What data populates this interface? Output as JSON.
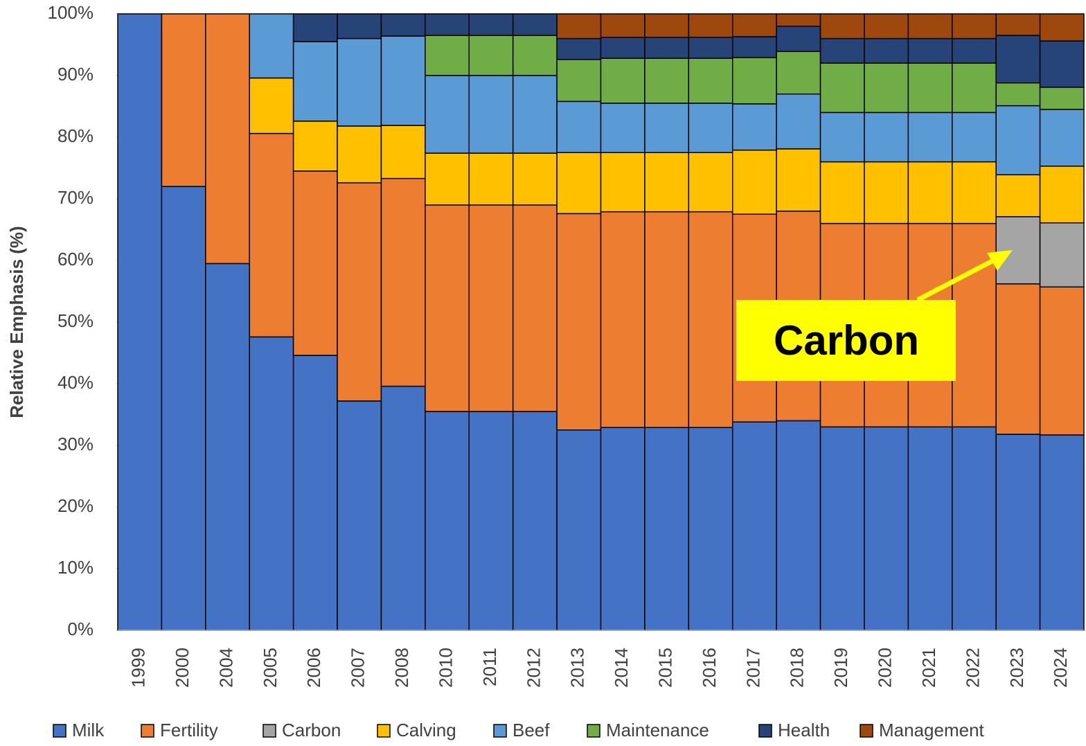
{
  "chart_data": {
    "type": "stacked_bar",
    "y_label": "Relative Emphasis (%)",
    "categories": [
      "1999",
      "2000",
      "2004",
      "2005",
      "2006",
      "2007",
      "2008",
      "2010",
      "2011",
      "2012",
      "2013",
      "2014",
      "2015",
      "2016",
      "2017",
      "2018",
      "2019",
      "2020",
      "2021",
      "2022",
      "2023",
      "2024"
    ],
    "ylim": [
      0,
      100
    ],
    "yticks": [
      {
        "value": 0,
        "label": "0%"
      },
      {
        "value": 10,
        "label": "10%"
      },
      {
        "value": 20,
        "label": "20%"
      },
      {
        "value": 30,
        "label": "30%"
      },
      {
        "value": 40,
        "label": "40%"
      },
      {
        "value": 50,
        "label": "50%"
      },
      {
        "value": 60,
        "label": "60%"
      },
      {
        "value": 70,
        "label": "70%"
      },
      {
        "value": 80,
        "label": "80%"
      },
      {
        "value": 90,
        "label": "90%"
      },
      {
        "value": 100,
        "label": "100%"
      }
    ],
    "legend": "bottom",
    "series": [
      {
        "name": "Milk",
        "color": "#4472c4",
        "values": [
          100,
          72,
          59.5,
          47.6,
          44.6,
          37.2,
          39.6,
          35.5,
          35.5,
          35.5,
          32.5,
          32.9,
          32.9,
          32.9,
          33.8,
          34,
          33,
          33,
          33,
          33,
          31.8,
          31.7
        ]
      },
      {
        "name": "Fertility",
        "color": "#ed7d31",
        "values": [
          null,
          28,
          40.5,
          33,
          29.9,
          35.4,
          33.7,
          33.5,
          33.5,
          33.5,
          35.1,
          35,
          35,
          35,
          33.7,
          34,
          33,
          33,
          33,
          33,
          24.4,
          24
        ]
      },
      {
        "name": "Carbon",
        "color": "#a5a5a5",
        "values": [
          null,
          null,
          null,
          null,
          null,
          null,
          null,
          null,
          null,
          null,
          null,
          null,
          null,
          null,
          null,
          null,
          null,
          null,
          null,
          null,
          10.9,
          10.4
        ]
      },
      {
        "name": "Calving",
        "color": "#ffc000",
        "values": [
          null,
          null,
          null,
          9,
          8.1,
          9.2,
          8.6,
          8.4,
          8.4,
          8.4,
          9.9,
          9.6,
          9.6,
          9.6,
          10.4,
          10.1,
          10,
          10,
          10,
          10,
          6.8,
          9.2
        ]
      },
      {
        "name": "Beef",
        "color": "#5b9bd5",
        "values": [
          null,
          null,
          null,
          10.4,
          12.9,
          14.2,
          14.5,
          12.6,
          12.6,
          12.6,
          8.3,
          8,
          8,
          8,
          7.5,
          8.9,
          8,
          8,
          8,
          8,
          11.2,
          9.2
        ]
      },
      {
        "name": "Maintenance",
        "color": "#70ad47",
        "values": [
          null,
          null,
          null,
          null,
          null,
          null,
          null,
          6.5,
          6.5,
          6.5,
          6.8,
          7.3,
          7.3,
          7.3,
          7.5,
          6.9,
          8,
          8,
          8,
          8,
          3.7,
          3.6
        ]
      },
      {
        "name": "Health",
        "color": "#264478",
        "values": [
          null,
          null,
          null,
          null,
          4.5,
          4,
          3.6,
          3.5,
          3.5,
          3.5,
          3.4,
          3.4,
          3.4,
          3.4,
          3.4,
          4.1,
          4,
          4,
          4,
          4,
          7.7,
          7.5
        ]
      },
      {
        "name": "Management",
        "color": "#9e480e",
        "values": [
          null,
          null,
          null,
          null,
          null,
          null,
          null,
          null,
          null,
          null,
          4,
          3.8,
          3.8,
          3.8,
          3.7,
          2,
          4,
          4,
          4,
          4,
          3.5,
          4.4
        ]
      }
    ],
    "annotation": "Carbon"
  }
}
